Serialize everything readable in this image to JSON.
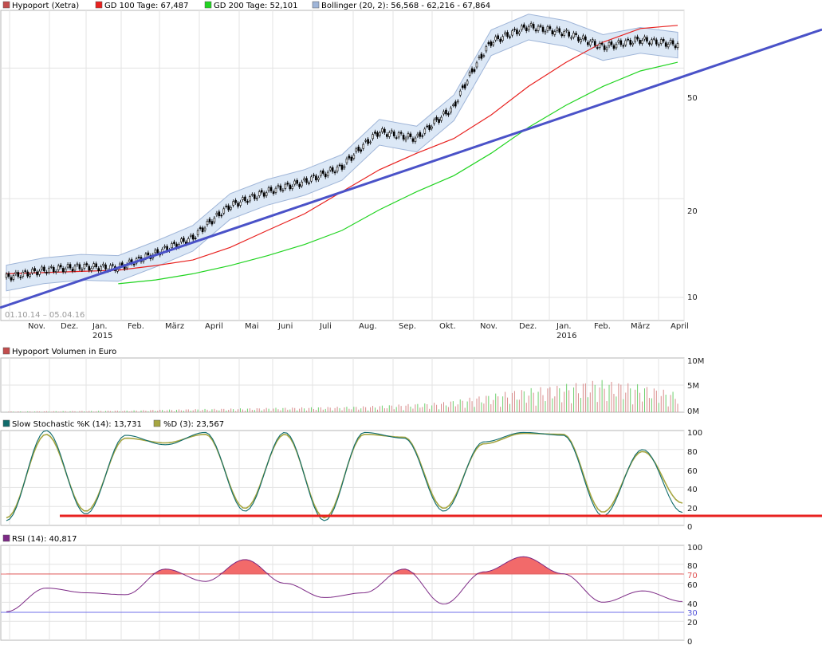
{
  "colors": {
    "price": "#000000",
    "gd100": "#e8211f",
    "gd200": "#21d421",
    "bollinger_fill": "#dce8f6",
    "bollinger_line": "#9fb5d8",
    "trend": "#4a52c8",
    "volume": "#d88b8b",
    "stoch_k": "#0f6b6b",
    "stoch_d": "#a6a641",
    "rsi": "#7d2a86",
    "rsi_fill": "#f26a6a",
    "stoch_support": "#e8211f",
    "rsi_70": "#e87070",
    "rsi_30": "#6f6fe8"
  },
  "price_panel": {
    "legend": [
      {
        "swatch": "#c24d4d",
        "label": "Hypoport (Xetra)"
      },
      {
        "swatch": "#e8211f",
        "label": "GD 100 Tage: 67,487"
      },
      {
        "swatch": "#21d421",
        "label": "GD 200 Tage: 52,101"
      },
      {
        "swatch": "#9fb5d8",
        "label": "Bollinger (20, 2): 56,568 - 62,216 - 67,864"
      }
    ],
    "date_range": "01.10.14 – 05.04.16",
    "y_ticks": [
      "50",
      "20",
      "10"
    ]
  },
  "volume_panel": {
    "legend": [
      {
        "swatch": "#c24d4d",
        "label": "Hypoport Volumen in Euro"
      }
    ],
    "y_ticks": [
      "10M",
      "5M",
      "0M"
    ]
  },
  "stoch_panel": {
    "legend": [
      {
        "swatch": "#0f6b6b",
        "label": "Slow Stochastic %K (14): 13,731"
      },
      {
        "swatch": "#a6a641",
        "label": "%D (3): 23,567"
      }
    ],
    "y_ticks": [
      "100",
      "80",
      "60",
      "40",
      "20",
      "0"
    ]
  },
  "rsi_panel": {
    "legend": [
      {
        "swatch": "#7d2a86",
        "label": "RSI (14): 40,817"
      }
    ],
    "y_ticks": [
      "100",
      "80",
      "70",
      "60",
      "40",
      "30",
      "20",
      "0"
    ]
  },
  "x_axis": {
    "months": [
      "Nov.",
      "Dez.",
      "Jan.",
      "Feb.",
      "März",
      "April",
      "Mai",
      "Juni",
      "Juli",
      "Aug.",
      "Sep.",
      "Okt.",
      "Nov.",
      "Dez.",
      "Jan.",
      "Feb.",
      "März",
      "April"
    ],
    "years": [
      "2015",
      "2016"
    ]
  },
  "chart_data": [
    {
      "type": "line",
      "title": "Hypoport (Xetra)",
      "yscale": "log",
      "ylim": [
        8.5,
        75
      ],
      "x": [
        "2014-10",
        "2014-11",
        "2014-12",
        "2015-01",
        "2015-02",
        "2015-03",
        "2015-04",
        "2015-05",
        "2015-06",
        "2015-07",
        "2015-08",
        "2015-09",
        "2015-10",
        "2015-11",
        "2015-12",
        "2016-01",
        "2016-02",
        "2016-03",
        "2016-04"
      ],
      "series": [
        {
          "name": "Hypoport (Xetra)",
          "values": [
            11.5,
            12.1,
            12.4,
            12.3,
            13.6,
            15.2,
            19.0,
            21.0,
            22.5,
            25.0,
            32.0,
            30.5,
            38.0,
            60.0,
            67.0,
            64.0,
            58.0,
            61.0,
            59.0
          ]
        },
        {
          "name": "GD 100 Tage: 67,487",
          "values": [
            11.8,
            11.9,
            12.0,
            12.1,
            12.5,
            13.0,
            14.2,
            16.0,
            18.0,
            21.0,
            24.5,
            27.5,
            30.5,
            36.0,
            44.0,
            52.0,
            60.0,
            66.0,
            67.5
          ]
        },
        {
          "name": "GD 200 Tage: 52,101",
          "values": [
            null,
            null,
            null,
            11.0,
            11.3,
            11.8,
            12.5,
            13.4,
            14.5,
            16.0,
            18.5,
            21.0,
            23.5,
            27.5,
            33.0,
            38.5,
            44.0,
            49.0,
            52.1
          ]
        }
      ],
      "bollinger": {
        "label": "Bollinger (20, 2): 56,568 - 62,216 - 67,864",
        "lower": 56.568,
        "middle": 62.216,
        "upper": 67.864
      }
    },
    {
      "type": "bar",
      "title": "Hypoport Volumen in Euro",
      "ylim": [
        0,
        10000000
      ],
      "series": [
        {
          "name": "Hypoport Volumen in Euro",
          "values": [
            120000,
            150000,
            200000,
            250000,
            400000,
            500000,
            600000,
            700000,
            800000,
            900000,
            1200000,
            1500000,
            2500000,
            3500000,
            4200000,
            5000000,
            4300000,
            3000000
          ]
        }
      ]
    },
    {
      "type": "line",
      "title": "Slow Stochastic %K (14)",
      "ylim": [
        0,
        100
      ],
      "series": [
        {
          "name": "Slow Stochastic %K (14): 13,731",
          "values": [
            5,
            100,
            12,
            95,
            85,
            98,
            15,
            98,
            5,
            98,
            92,
            15,
            88,
            98,
            95,
            10,
            80,
            13.731
          ]
        },
        {
          "name": "%D (3): 23,567",
          "values": [
            8,
            96,
            15,
            92,
            87,
            96,
            18,
            96,
            8,
            96,
            93,
            18,
            86,
            97,
            96,
            14,
            78,
            23.567
          ]
        }
      ],
      "reference_lines": [
        10
      ]
    },
    {
      "type": "line",
      "title": "RSI (14)",
      "ylim": [
        0,
        100
      ],
      "series": [
        {
          "name": "RSI (14): 40,817",
          "values": [
            30,
            55,
            50,
            48,
            75,
            62,
            85,
            60,
            45,
            50,
            75,
            38,
            72,
            88,
            70,
            40,
            52,
            40.817
          ]
        }
      ],
      "reference_lines": [
        70,
        30
      ]
    }
  ]
}
